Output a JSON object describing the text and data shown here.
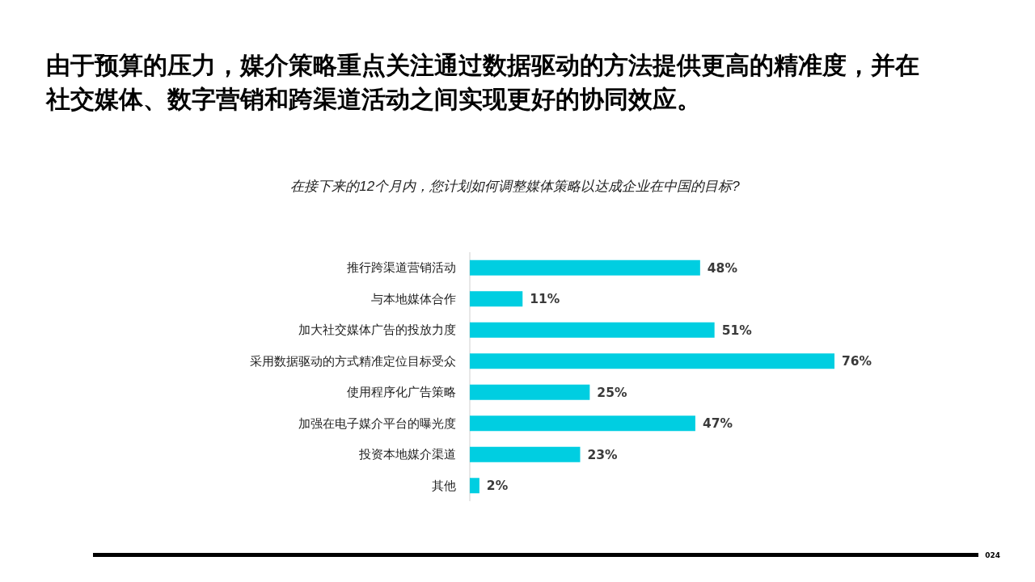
{
  "chart_data": {
    "type": "bar",
    "orientation": "horizontal",
    "title": "由于预算的压力，媒介策略重点关注通过数据驱动的方法提供更高的精准度，并在社交媒体、数字营销和跨渠道活动之间实现更好的协同效应。",
    "subtitle": "在接下来的12个月内，您计划如何调整媒体策略以达成企业在中国的目标?",
    "categories": [
      "推行跨渠道营销活动",
      "与本地媒体合作",
      "加大社交媒体广告的投放力度",
      "采用数据驱动的方式精准定位目标受众",
      "使用程序化广告策略",
      "加强在电子媒介平台的曝光度",
      "投资本地媒介渠道",
      "其他"
    ],
    "values": [
      48,
      11,
      51,
      76,
      25,
      47,
      23,
      2
    ],
    "value_labels": [
      "48%",
      "11%",
      "51%",
      "76%",
      "25%",
      "47%",
      "23%",
      "2%"
    ],
    "color": "#00cee1",
    "annotations": [
      "024"
    ]
  }
}
